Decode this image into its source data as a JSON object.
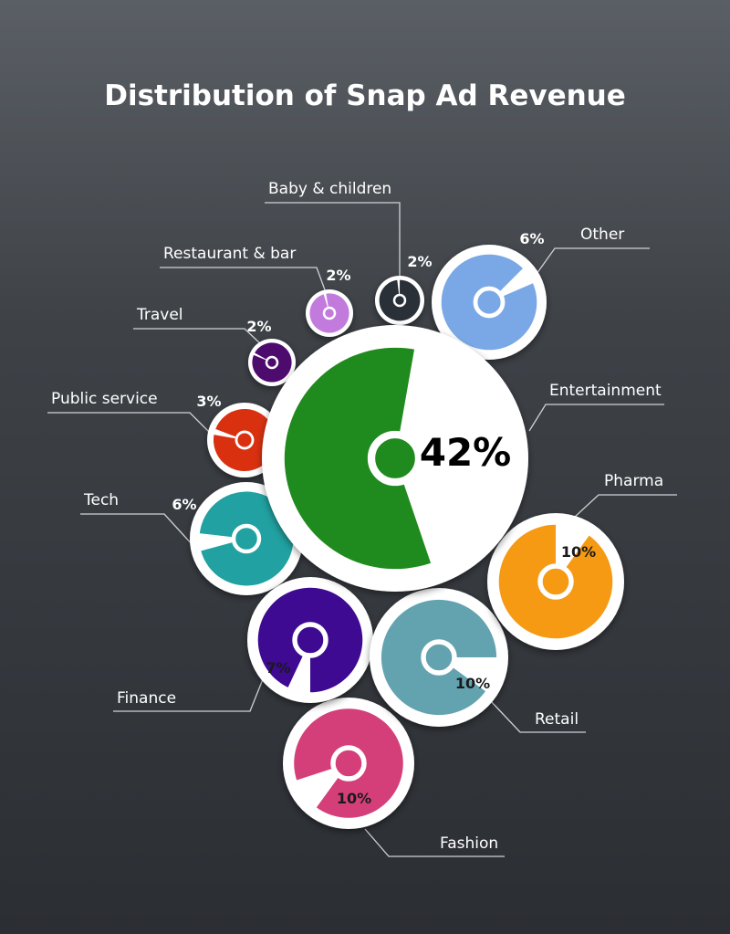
{
  "chart_data": {
    "type": "pie",
    "title": "Distribution of Snap Ad Revenue",
    "categories": [
      "Entertainment",
      "Pharma",
      "Retail",
      "Fashion",
      "Finance",
      "Tech",
      "Public service",
      "Travel",
      "Restaurant & bar",
      "Baby & children",
      "Other"
    ],
    "values": [
      42,
      10,
      10,
      10,
      7,
      6,
      3,
      2,
      2,
      2,
      6
    ],
    "value_labels": [
      "42%",
      "10%",
      "10%",
      "10%",
      "7%",
      "6%",
      "3%",
      "2%",
      "2%",
      "2%",
      "6%"
    ],
    "colors": [
      "#1f8a1d",
      "#f59a12",
      "#63a3b0",
      "#d43f79",
      "#3d0a91",
      "#21a1a1",
      "#d93110",
      "#4e0b6e",
      "#c27bdc",
      "#2a3038",
      "#7aa8e6"
    ],
    "legend": "none",
    "grid": false
  }
}
